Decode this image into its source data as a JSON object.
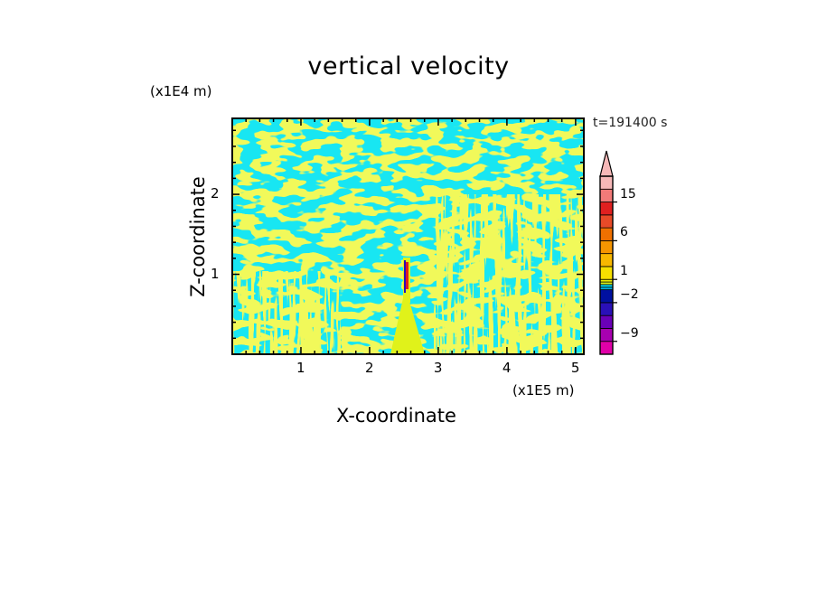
{
  "chart_data": {
    "type": "heatmap",
    "title": "vertical velocity",
    "xlabel": "X-coordinate",
    "ylabel": "Z-coordinate",
    "x_scale_label": "(x1E5 m)",
    "y_scale_label": "(x1E4 m)",
    "time_label": "t=191400 s",
    "xlim": [
      0,
      5.12
    ],
    "ylim": [
      0,
      2.95
    ],
    "xticks": [
      1,
      2,
      3,
      4,
      5
    ],
    "yticks": [
      1,
      2
    ],
    "xtick_labels": [
      "1",
      "2",
      "3",
      "4",
      "5"
    ],
    "ytick_labels": [
      "1",
      "2"
    ],
    "colorbar": {
      "levels": [
        -12,
        -9,
        -6,
        -4,
        -2,
        -1,
        -0.5,
        0,
        0.5,
        1,
        2,
        4,
        6,
        9,
        12,
        15,
        18,
        30
      ],
      "colors": [
        "#e000a8",
        "#a800b0",
        "#6a00b8",
        "#2a10b8",
        "#0010a0",
        "#00ace0",
        "#00e6ff",
        "#d6f01a",
        "#eef000",
        "#f6e000",
        "#f8b800",
        "#f59500",
        "#f07000",
        "#e84a28",
        "#e02020",
        "#f27a78",
        "#f6b8b8"
      ],
      "labels": [
        "15",
        "6",
        "1",
        "−2",
        "−9"
      ],
      "label_values": [
        15,
        6,
        1,
        -2,
        -9
      ],
      "extend": "max"
    },
    "field_colors": {
      "positive": "#e0f21a",
      "negative": "#18e6f2"
    },
    "features": [
      {
        "name": "strong updraft core",
        "x": 2.54,
        "z_range": [
          0.8,
          1.2
        ]
      }
    ]
  }
}
